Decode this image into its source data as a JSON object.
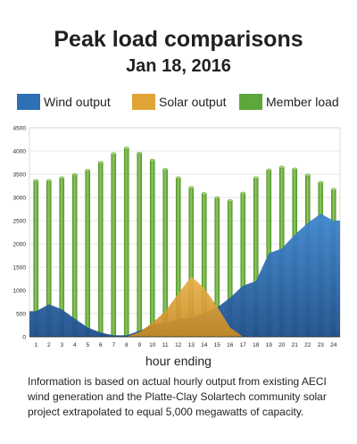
{
  "header": {
    "title": "Peak load comparisons",
    "subtitle": "Jan 18, 2016"
  },
  "legend": [
    {
      "label": "Wind output",
      "color": "#2e6fb5"
    },
    {
      "label": "Solar output",
      "color": "#e0a335"
    },
    {
      "label": "Member load",
      "color": "#5ea73a"
    }
  ],
  "footnote": "Information is based on actual hourly output from existing AECI wind generation and the Platte-Clay Solartech community solar project extrapolated to equal 5,000 megawatts of capacity.",
  "chart_data": {
    "type": "bar",
    "title": "Peak load comparisons",
    "subtitle": "Jan 18, 2016",
    "xlabel": "hour ending",
    "ylabel": "",
    "ylim": [
      0,
      4500
    ],
    "yticks": [
      0,
      500,
      1000,
      1500,
      2000,
      2500,
      3000,
      3500,
      4000,
      4500
    ],
    "grid": true,
    "legend_position": "top",
    "categories": [
      "1",
      "2",
      "3",
      "4",
      "5",
      "6",
      "7",
      "8",
      "9",
      "10",
      "11",
      "12",
      "13",
      "14",
      "15",
      "16",
      "17",
      "18",
      "19",
      "20",
      "21",
      "22",
      "23",
      "24"
    ],
    "series": [
      {
        "name": "Member load",
        "type": "bar",
        "color": "#5ea73a",
        "values": [
          3360,
          3360,
          3420,
          3490,
          3580,
          3750,
          3940,
          4060,
          3950,
          3800,
          3600,
          3420,
          3210,
          3080,
          2990,
          2930,
          3090,
          3420,
          3590,
          3650,
          3610,
          3480,
          3320,
          3170
        ]
      },
      {
        "name": "Wind output",
        "type": "area",
        "color": "#2e6fb5",
        "values": [
          550,
          700,
          590,
          390,
          200,
          90,
          30,
          30,
          130,
          250,
          320,
          380,
          420,
          520,
          630,
          840,
          1100,
          1200,
          1800,
          1900,
          2200,
          2450,
          2650,
          2500
        ]
      },
      {
        "name": "Solar output",
        "type": "area",
        "color": "#e0a335",
        "values": [
          0,
          0,
          0,
          0,
          0,
          0,
          0,
          0,
          100,
          300,
          550,
          930,
          1300,
          1050,
          650,
          200,
          0,
          0,
          0,
          0,
          0,
          0,
          0,
          0
        ]
      }
    ]
  }
}
